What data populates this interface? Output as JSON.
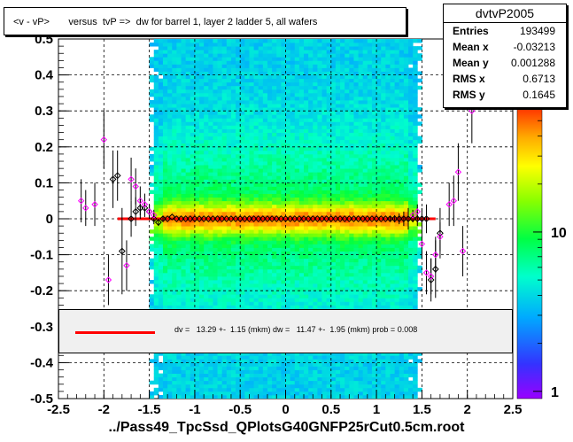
{
  "title": "<v - vP>       versus  tvP =>  dw for barrel 1, layer 2 ladder 5, all wafers",
  "stats": {
    "name": "dvtvP2005",
    "rows": [
      {
        "label": "Entries",
        "value": "193499"
      },
      {
        "label": "Mean x",
        "value": "-0.03213"
      },
      {
        "label": "Mean y",
        "value": "0.001288"
      },
      {
        "label": "RMS x",
        "value": "0.6713"
      },
      {
        "label": "RMS y",
        "value": "0.1645"
      }
    ]
  },
  "fit_text": "dv =   13.29 +-  1.15 (mkm) dw =   11.47 +-  1.95 (mkm) prob = 0.008",
  "chart_data": {
    "type": "heatmap",
    "title": "<v - vP>       versus  tvP =>  dw for barrel 1, layer 2 ladder 5, all wafers",
    "xlabel": "../Pass49_TpcSsd_QPlotsG40GNFP25rCut0.5cm.root",
    "xlim": [
      -2.5,
      2.5
    ],
    "ylim": [
      -0.5,
      0.5
    ],
    "x_ticks": [
      "-2.5",
      "-2",
      "-1.5",
      "-1",
      "-0.5",
      "0",
      "0.5",
      "1",
      "1.5",
      "2",
      "2.5"
    ],
    "y_ticks": [
      "-0.5",
      "-0.4",
      "-0.3",
      "-0.2",
      "-0.1",
      "0",
      "0.1",
      "0.2",
      "0.3",
      "0.4",
      "0.5"
    ],
    "z_ticks": [
      "1",
      "10"
    ],
    "z_scale": "log",
    "grid": true,
    "fit_line": {
      "x": [
        -1.85,
        1.65
      ],
      "y": [
        0.0,
        0.0
      ]
    },
    "profile_black": {
      "x": [
        -1.9,
        -1.85,
        -1.8,
        -1.7,
        -1.65,
        -1.6,
        -1.55,
        -1.5,
        -1.45,
        -1.4,
        -1.35,
        -1.3,
        -1.25,
        -1.2,
        -1.15,
        -1.1,
        -1.05,
        -1.0,
        -0.95,
        -0.9,
        -0.85,
        -0.8,
        -0.75,
        -0.7,
        -0.65,
        -0.6,
        -0.55,
        -0.5,
        -0.45,
        -0.4,
        -0.35,
        -0.3,
        -0.25,
        -0.2,
        -0.15,
        -0.1,
        -0.05,
        0.0,
        0.05,
        0.1,
        0.15,
        0.2,
        0.25,
        0.3,
        0.35,
        0.4,
        0.45,
        0.5,
        0.55,
        0.6,
        0.65,
        0.7,
        0.75,
        0.8,
        0.85,
        0.9,
        0.95,
        1.0,
        1.05,
        1.1,
        1.15,
        1.2,
        1.25,
        1.3,
        1.35,
        1.4,
        1.45,
        1.5,
        1.55,
        1.6,
        1.65,
        1.7
      ],
      "y": [
        0.11,
        0.12,
        -0.09,
        0.0,
        0.02,
        0.03,
        0.03,
        0.02,
        0.0,
        -0.01,
        0.0,
        0.0,
        0.005,
        0.0,
        0.0,
        0.0,
        0.0,
        0.0,
        0.0,
        0.0,
        0.0,
        0.0,
        0.0,
        0.0,
        0.0,
        0.0,
        0.0,
        0.0,
        0.0,
        0.0,
        0.0,
        0.0,
        0.0,
        0.0,
        0.0,
        0.0,
        0.0,
        0.0,
        0.0,
        0.0,
        0.0,
        0.0,
        0.0,
        0.0,
        0.0,
        0.0,
        0.0,
        0.0,
        0.0,
        0.0,
        0.0,
        0.0,
        0.0,
        0.0,
        0.0,
        0.0,
        0.0,
        0.0,
        0.0,
        0.0,
        0.0,
        0.0,
        0.0,
        0.0,
        0.0,
        0.0,
        0.0,
        0.0,
        0.0,
        -0.17,
        -0.14,
        -0.04
      ],
      "err": [
        0.08,
        0.07,
        0.12,
        0.05,
        0.04,
        0.03,
        0.025,
        0.02,
        0.015,
        0.01,
        0.008,
        0.006,
        0.005,
        0.004,
        0.004,
        0.004,
        0.004,
        0.004,
        0.004,
        0.004,
        0.004,
        0.004,
        0.004,
        0.004,
        0.004,
        0.004,
        0.004,
        0.004,
        0.004,
        0.004,
        0.004,
        0.004,
        0.004,
        0.004,
        0.004,
        0.004,
        0.004,
        0.004,
        0.004,
        0.004,
        0.004,
        0.004,
        0.004,
        0.004,
        0.004,
        0.004,
        0.004,
        0.004,
        0.004,
        0.004,
        0.004,
        0.004,
        0.004,
        0.004,
        0.004,
        0.004,
        0.004,
        0.004,
        0.004,
        0.006,
        0.008,
        0.01,
        0.015,
        0.02,
        0.03,
        0.01,
        0.02,
        0.03,
        0.04,
        0.06,
        0.08,
        0.07
      ]
    },
    "profile_magenta": {
      "x": [
        -2.25,
        -2.2,
        -2.1,
        -2.0,
        -1.95,
        -1.75,
        -1.7,
        -1.65,
        -1.6,
        -1.55,
        -1.5,
        -1.45,
        1.4,
        1.45,
        1.5,
        1.55,
        1.6,
        1.65,
        1.7,
        1.8,
        1.85,
        1.9,
        1.95,
        2.05
      ],
      "y": [
        0.05,
        0.03,
        0.04,
        0.22,
        -0.17,
        -0.13,
        0.11,
        0.09,
        0.05,
        0.04,
        0.02,
        0.01,
        0.01,
        0.02,
        -0.07,
        -0.15,
        -0.16,
        -0.1,
        -0.05,
        0.04,
        0.05,
        0.13,
        -0.09,
        0.3
      ],
      "err": [
        0.06,
        0.05,
        0.06,
        0.08,
        0.07,
        0.07,
        0.06,
        0.05,
        0.04,
        0.03,
        0.02,
        0.015,
        0.015,
        0.02,
        0.04,
        0.06,
        0.05,
        0.05,
        0.04,
        0.06,
        0.07,
        0.08,
        0.07,
        0.09
      ]
    },
    "density_model": {
      "x_core": [
        -1.45,
        1.45
      ],
      "y_sigma": 0.16,
      "y_core_sigma": 0.03
    }
  },
  "colors": {
    "fit": "#ff0000",
    "profile_black": "#000000",
    "profile_magenta": "#ff00ff",
    "grid": "#000000"
  }
}
